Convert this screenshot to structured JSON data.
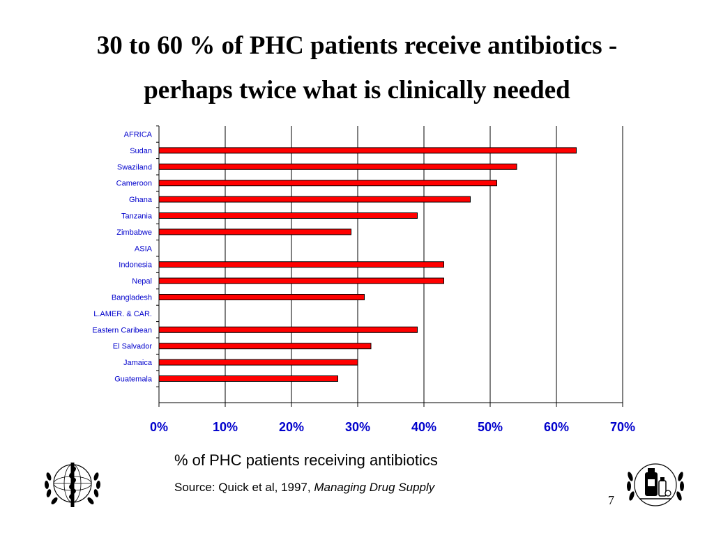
{
  "slide": {
    "title_line1": "30 to 60 % of PHC patients receive antibiotics -",
    "title_line2": "perhaps twice what is clinically needed",
    "page_number": "7",
    "source_prefix": "Source: Quick et al, 1997, ",
    "source_italic": "Managing Drug Supply"
  },
  "logos": {
    "left": "who-emblem-icon",
    "right": "pharmacy-emblem-icon"
  },
  "chart_data": {
    "type": "bar",
    "orientation": "horizontal",
    "title": "",
    "xlabel": "% of PHC patients receiving antibiotics",
    "ylabel": "",
    "xlim": [
      0,
      0.7
    ],
    "x_ticks": [
      "0%",
      "10%",
      "20%",
      "30%",
      "40%",
      "50%",
      "60%",
      "70%"
    ],
    "grid": "vertical major gridlines",
    "bar_color": "#ff0000",
    "label_color": "#0000cc",
    "categories": [
      "AFRICA",
      "Sudan",
      "Swaziland",
      "Cameroon",
      "Ghana",
      "Tanzania",
      "Zimbabwe",
      "ASIA",
      "Indonesia",
      "Nepal",
      "Bangladesh",
      "L.AMER. & CAR.",
      "Eastern Caribean",
      "El Salvador",
      "Jamaica",
      "Guatemala"
    ],
    "values": [
      null,
      0.63,
      0.54,
      0.51,
      0.47,
      0.39,
      0.29,
      null,
      0.43,
      0.43,
      0.31,
      null,
      0.39,
      0.32,
      0.3,
      0.27
    ]
  }
}
